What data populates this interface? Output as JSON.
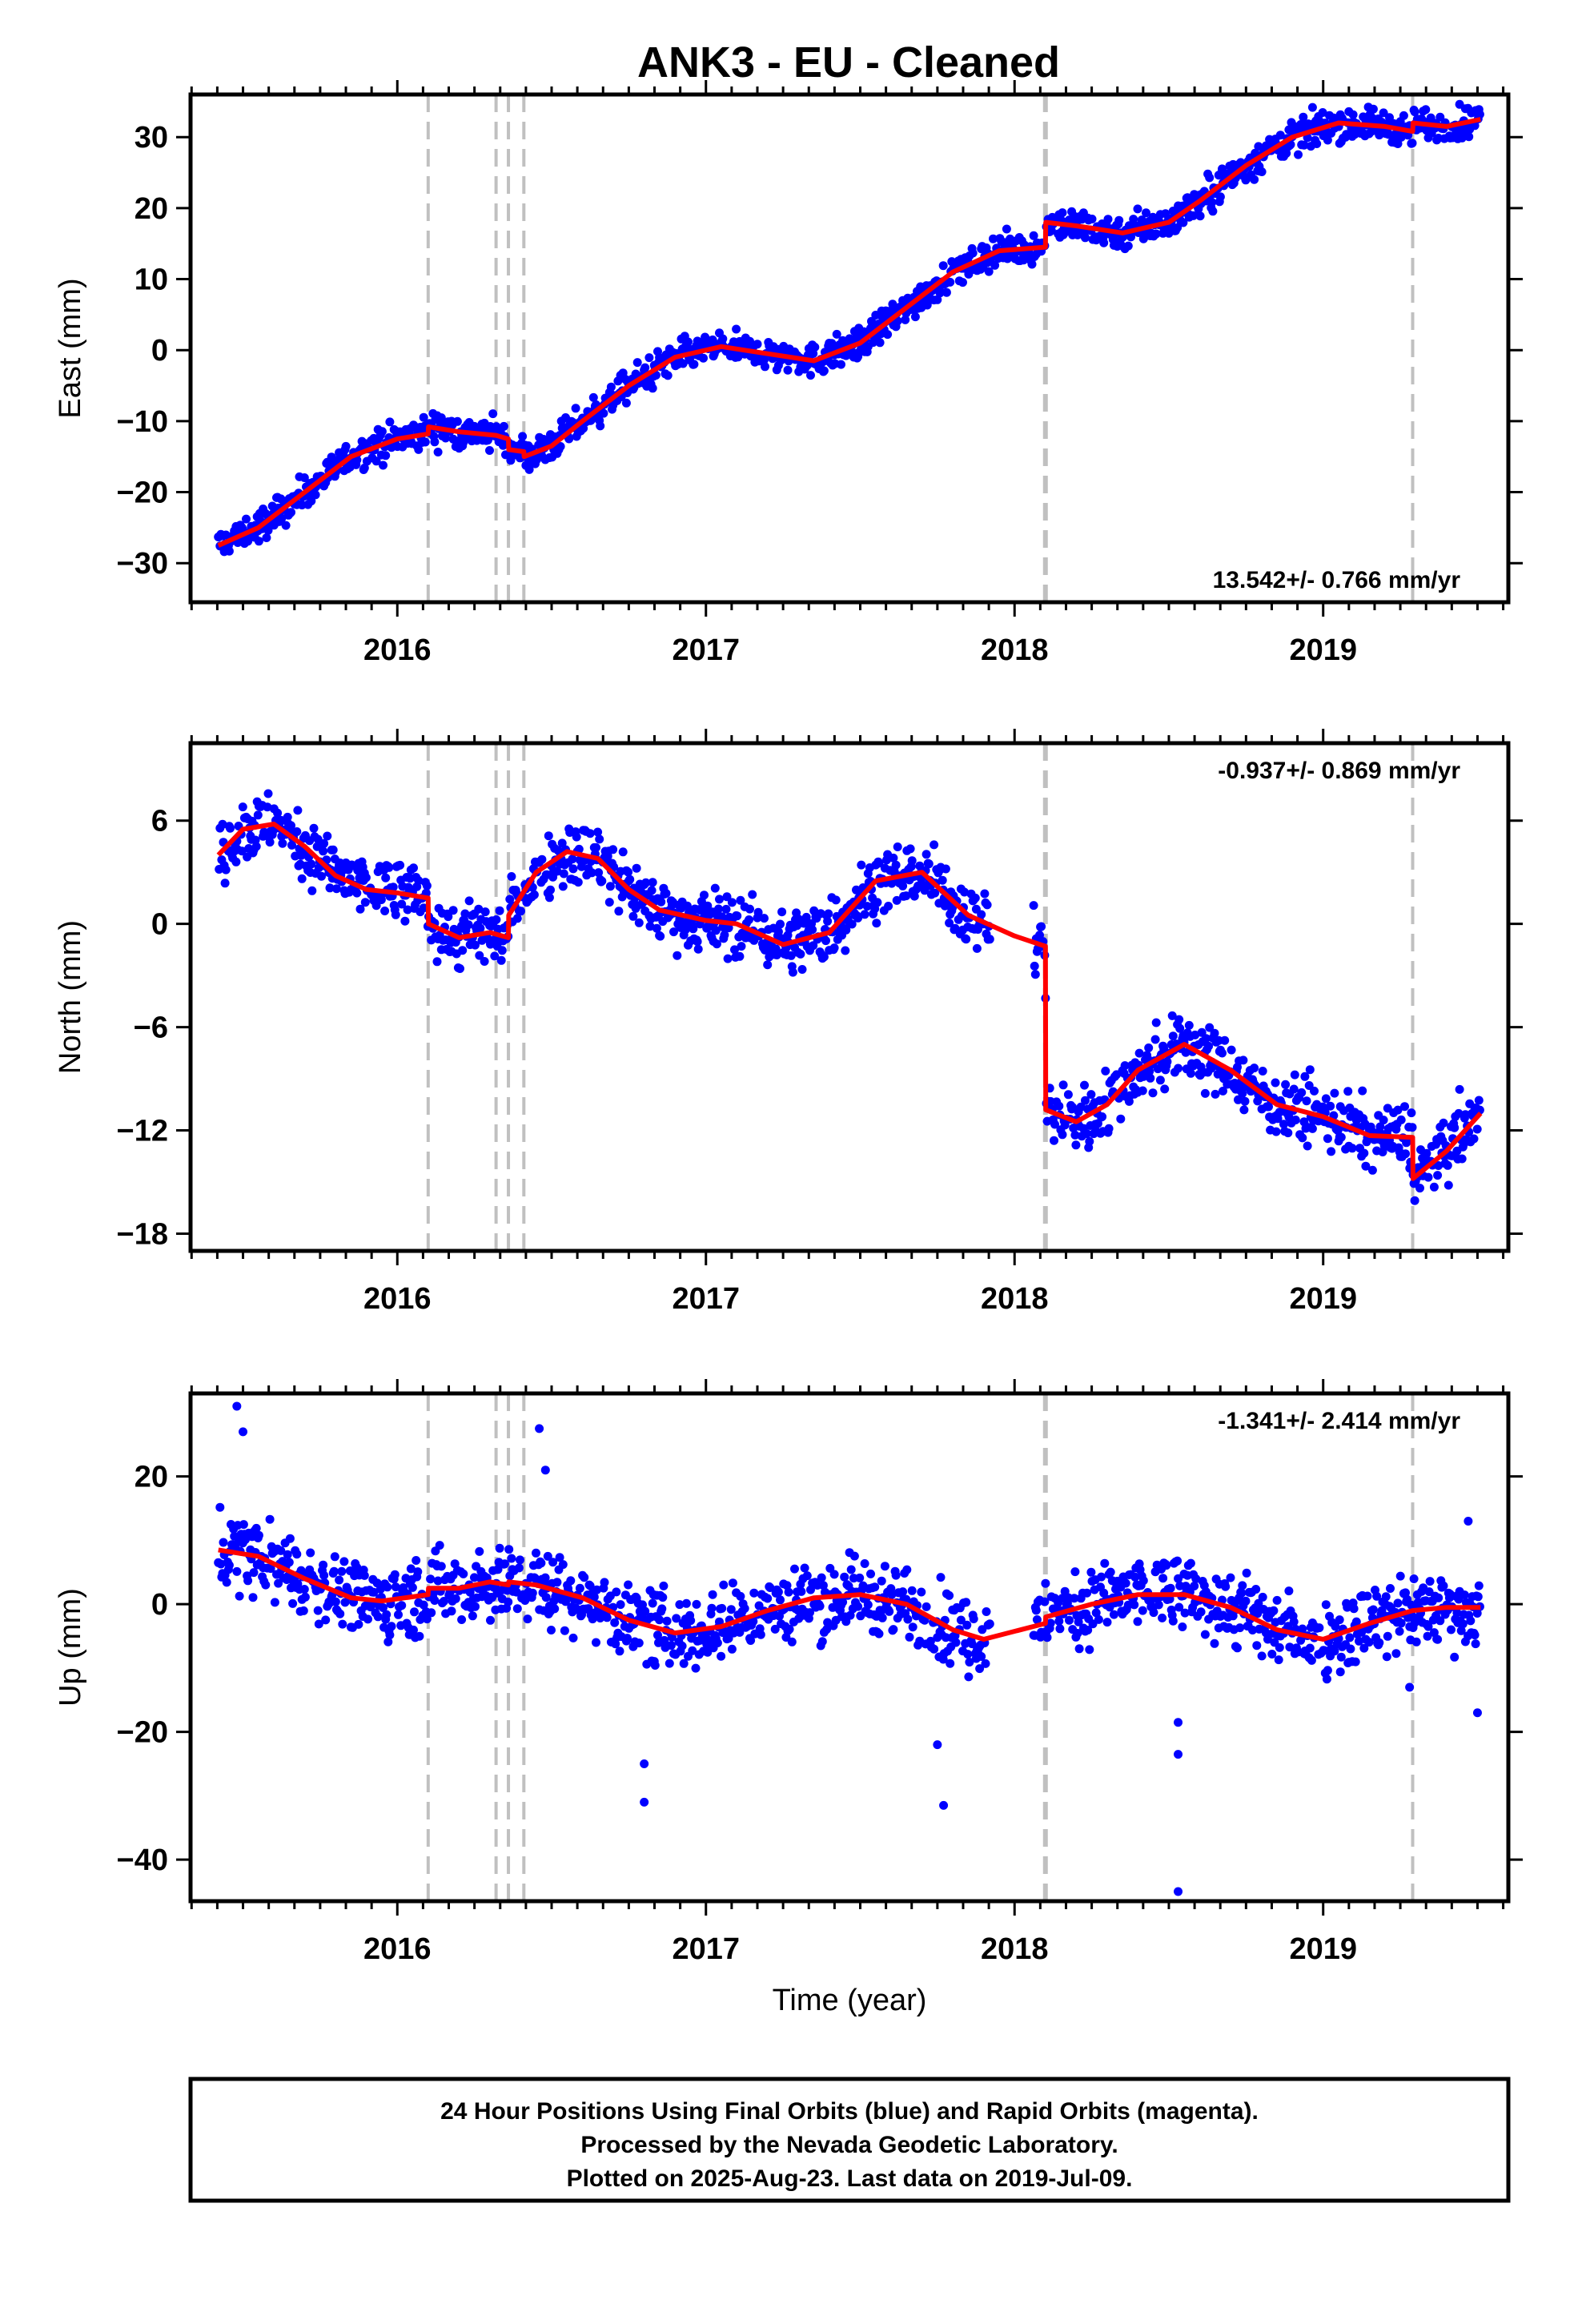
{
  "figure": {
    "title": "ANK3  - EU - Cleaned",
    "footer": [
      "24 Hour Positions Using Final Orbits (blue) and Rapid Orbits (magenta).",
      "Processed by the Nevada Geodetic Laboratory.",
      "Plotted on 2025-Aug-23. Last data on 2019-Jul-09."
    ]
  },
  "colors": {
    "data": "#0000ff",
    "fit": "#ff0000",
    "event_line": "#c0c0c0",
    "frame": "#000000"
  },
  "chart_data": [
    {
      "type": "scatter",
      "name": "east",
      "ylabel": "East (mm)",
      "xlabel": "",
      "rate_label": "13.542+/- 0.766 mm/yr",
      "rate_position": "bottom-right",
      "xlim": [
        2015.33,
        2019.6
      ],
      "ylim": [
        -35.5,
        36
      ],
      "yticks": [
        -30,
        -20,
        -10,
        0,
        10,
        20,
        30
      ],
      "xticks": [
        2016,
        2017,
        2018,
        2019
      ],
      "events": [
        2016.1,
        2016.32,
        2016.36,
        2016.41,
        2018.1,
        2019.29
      ],
      "noise": 1.6,
      "fit": {
        "x": [
          2015.42,
          2015.55,
          2015.7,
          2015.85,
          2016.0,
          2016.1,
          2016.101,
          2016.2,
          2016.32,
          2016.36,
          2016.361,
          2016.41,
          2016.411,
          2016.5,
          2016.6,
          2016.75,
          2016.9,
          2017.05,
          2017.2,
          2017.35,
          2017.5,
          2017.65,
          2017.8,
          2017.95,
          2018.1,
          2018.101,
          2018.2,
          2018.35,
          2018.5,
          2018.6,
          2018.75,
          2018.9,
          2019.05,
          2019.2,
          2019.29,
          2019.291,
          2019.4,
          2019.51
        ],
        "y": [
          -27.5,
          -25,
          -20,
          -15,
          -12.5,
          -11.8,
          -10.8,
          -11.5,
          -12,
          -12.5,
          -14,
          -14.3,
          -15,
          -13.5,
          -10,
          -5,
          -1,
          0.5,
          -0.5,
          -1.5,
          1,
          6,
          11,
          14,
          14.5,
          18,
          17.5,
          16.5,
          18,
          21,
          26,
          30,
          32,
          31.5,
          30.8,
          32,
          31.5,
          32.5
        ]
      }
    },
    {
      "type": "scatter",
      "name": "north",
      "ylabel": "North (mm)",
      "xlabel": "",
      "rate_label": "-0.937+/- 0.869 mm/yr",
      "rate_position": "top-right",
      "xlim": [
        2015.33,
        2019.6
      ],
      "ylim": [
        -19,
        10.5
      ],
      "yticks": [
        -18,
        -12,
        -6,
        0,
        6
      ],
      "xticks": [
        2016,
        2017,
        2018,
        2019
      ],
      "events": [
        2016.1,
        2016.32,
        2016.36,
        2016.41,
        2018.1,
        2019.29
      ],
      "noise": 1.3,
      "gap": [
        2017.92,
        2018.06
      ],
      "fit": {
        "x": [
          2015.42,
          2015.5,
          2015.6,
          2015.7,
          2015.8,
          2015.9,
          2016.0,
          2016.1,
          2016.101,
          2016.2,
          2016.3,
          2016.36,
          2016.361,
          2016.45,
          2016.55,
          2016.65,
          2016.75,
          2016.85,
          2017.0,
          2017.1,
          2017.25,
          2017.4,
          2017.55,
          2017.7,
          2017.85,
          2018.0,
          2018.1,
          2018.101,
          2018.2,
          2018.3,
          2018.4,
          2018.55,
          2018.7,
          2018.85,
          2019.0,
          2019.15,
          2019.29,
          2019.291,
          2019.4,
          2019.51
        ],
        "y": [
          4,
          5.5,
          5.8,
          4.5,
          2.8,
          2,
          1.8,
          1.5,
          0,
          -0.8,
          -0.5,
          -0.8,
          0.5,
          3,
          4.2,
          3.8,
          2,
          0.8,
          0.2,
          0,
          -1.2,
          -0.5,
          2.5,
          3,
          0.5,
          -0.7,
          -1.3,
          -10.8,
          -11.5,
          -10.5,
          -8.5,
          -7,
          -8.5,
          -10.5,
          -11.2,
          -12.3,
          -12.4,
          -14.8,
          -13.2,
          -11
        ]
      }
    },
    {
      "type": "scatter",
      "name": "up",
      "ylabel": "Up (mm)",
      "xlabel": "Time (year)",
      "rate_label": "-1.341+/- 2.414 mm/yr",
      "rate_position": "top-right",
      "xlim": [
        2015.33,
        2019.6
      ],
      "ylim": [
        -46.5,
        33
      ],
      "yticks": [
        -40,
        -20,
        0,
        20
      ],
      "xticks": [
        2016,
        2017,
        2018,
        2019
      ],
      "events": [
        2016.1,
        2016.32,
        2016.36,
        2016.41,
        2018.1,
        2019.29
      ],
      "noise": 4.2,
      "gap": [
        2017.92,
        2018.06
      ],
      "fit": {
        "x": [
          2015.42,
          2015.55,
          2015.7,
          2015.85,
          2015.95,
          2016.1,
          2016.101,
          2016.2,
          2016.3,
          2016.36,
          2016.361,
          2016.45,
          2016.6,
          2016.75,
          2016.9,
          2017.05,
          2017.2,
          2017.35,
          2017.5,
          2017.65,
          2017.8,
          2017.9,
          2018.1,
          2018.101,
          2018.25,
          2018.4,
          2018.55,
          2018.7,
          2018.85,
          2019.0,
          2019.15,
          2019.29,
          2019.291,
          2019.4,
          2019.51
        ],
        "y": [
          8.5,
          7.5,
          4,
          1,
          0.5,
          1.5,
          2.5,
          2.5,
          3.5,
          3,
          3.5,
          3,
          1,
          -2.5,
          -4.5,
          -3.5,
          -1,
          1,
          1.5,
          0,
          -4,
          -5.5,
          -3,
          -2,
          0,
          1.5,
          1.5,
          -0.5,
          -4,
          -5.5,
          -3,
          -1,
          -1,
          -0.5,
          -0.5
        ]
      },
      "outliers": [
        [
          2015.48,
          31
        ],
        [
          2015.5,
          27
        ],
        [
          2016.46,
          27.5
        ],
        [
          2016.48,
          21
        ],
        [
          2016.8,
          -25
        ],
        [
          2016.8,
          -31
        ],
        [
          2017.75,
          -22
        ],
        [
          2017.77,
          -31.5
        ],
        [
          2018.53,
          -23.5
        ],
        [
          2018.53,
          -18.5
        ],
        [
          2018.53,
          -45
        ],
        [
          2019.5,
          -17
        ],
        [
          2019.28,
          -13
        ],
        [
          2019.47,
          13
        ]
      ]
    }
  ]
}
